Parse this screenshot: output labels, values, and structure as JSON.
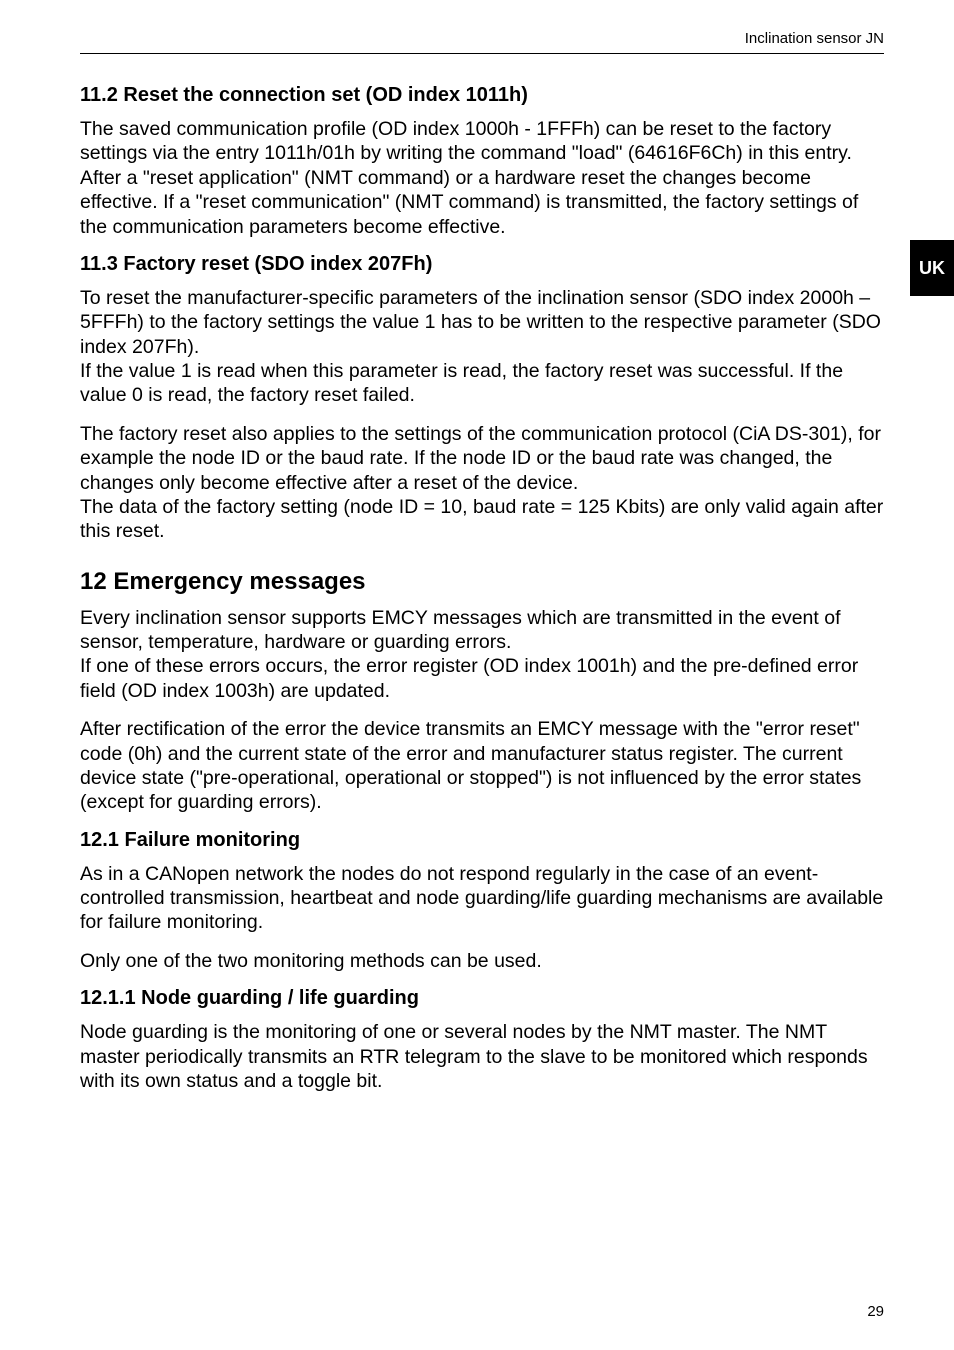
{
  "header": {
    "title": "Inclination sensor JN"
  },
  "uk_tab": "UK",
  "s112": {
    "heading": "11.2  Reset the connection set (OD index 1011h)",
    "p1": "The saved communication profile (OD index 1000h - 1FFFh) can be reset to the factory settings via the entry 1011h/01h by writing the command \"load\" (64616F6Ch) in this entry. After a \"reset application\" (NMT command) or a hardware reset the changes become effective. If a \"reset communication\" (NMT command) is transmitted, the factory settings of the communication parameters become effective."
  },
  "s113": {
    "heading": "11.3  Factory reset (SDO index 207Fh)",
    "p1": "To reset the manufacturer-specific parameters of the inclination sensor (SDO index 2000h – 5FFFh) to the factory settings the value 1 has to be written to the respective parameter (SDO index 207Fh).",
    "p2": "If the value 1 is read when this parameter is read, the factory reset was successful. If the value 0 is read, the factory reset failed.",
    "p3": "The factory reset also applies to the settings of the communication protocol (CiA DS-301), for example the node ID or the baud rate. If the node ID or the baud rate was changed, the changes only become effective after a reset of the device.",
    "p4": "The data of the factory setting (node ID = 10, baud rate = 125 Kbits) are only valid again after this reset."
  },
  "s12": {
    "heading": "12  Emergency messages",
    "p1": "Every inclination sensor supports EMCY messages which are transmitted in the event of sensor, temperature, hardware or guarding errors.",
    "p2": "If one of these errors occurs, the error register (OD index 1001h) and the pre-defined error field (OD index 1003h) are updated.",
    "p3": "After rectification of the error the device transmits an EMCY message with the \"error reset\" code (0h) and the current state of the error and manufacturer status register. The current device state (\"pre-operational, operational or stopped\") is not influenced by the error states (except for guarding errors)."
  },
  "s121": {
    "heading": "12.1  Failure monitoring",
    "p1": "As in a CANopen network the nodes do not respond regularly in the case of an event-controlled transmission, heartbeat and node guarding/life guarding mechanisms are available for failure monitoring.",
    "p2": "Only one of the two monitoring methods can be used."
  },
  "s1211": {
    "heading": "12.1.1  Node guarding / life guarding",
    "p1": "Node guarding is the monitoring of one or several nodes by the NMT master. The NMT master periodically transmits an RTR telegram to the slave to be monitored which responds with its own status and a toggle bit."
  },
  "page_number": "29"
}
